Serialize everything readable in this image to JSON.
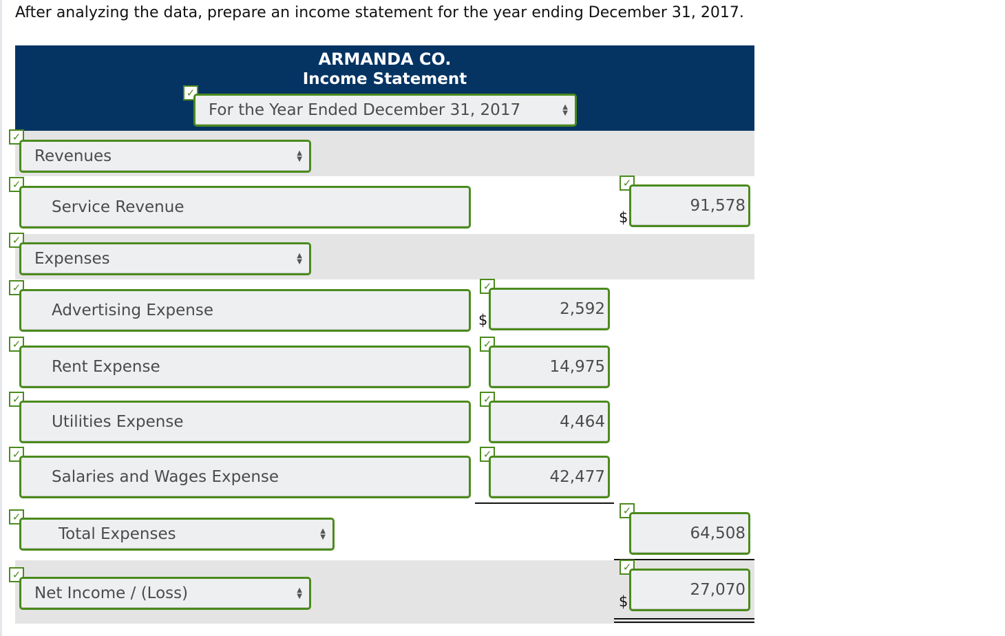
{
  "instruction": "After analyzing the data, prepare an income statement for the year ending December 31, 2017.",
  "company": "ARMANDA CO.",
  "statement_title": "Income Statement",
  "period": "For the Year Ended December 31, 2017",
  "check_glyph": "✓",
  "dollar": "$",
  "rows": {
    "revenues_heading": "Revenues",
    "service_revenue": {
      "label": "Service Revenue",
      "amount": "91,578"
    },
    "expenses_heading": "Expenses",
    "advertising": {
      "label": "Advertising Expense",
      "amount": "2,592"
    },
    "rent": {
      "label": "Rent Expense",
      "amount": "14,975"
    },
    "utilities": {
      "label": "Utilities Expense",
      "amount": "4,464"
    },
    "salaries": {
      "label": "Salaries and Wages Expense",
      "amount": "42,477"
    },
    "total_expenses": {
      "label": "Total Expenses",
      "amount": "64,508"
    },
    "net_income": {
      "label": "Net Income / (Loss)",
      "amount": "27,070"
    }
  },
  "colors": {
    "header": "#053463",
    "field_border": "#4a8a1c",
    "band": "#e4e4e4"
  }
}
